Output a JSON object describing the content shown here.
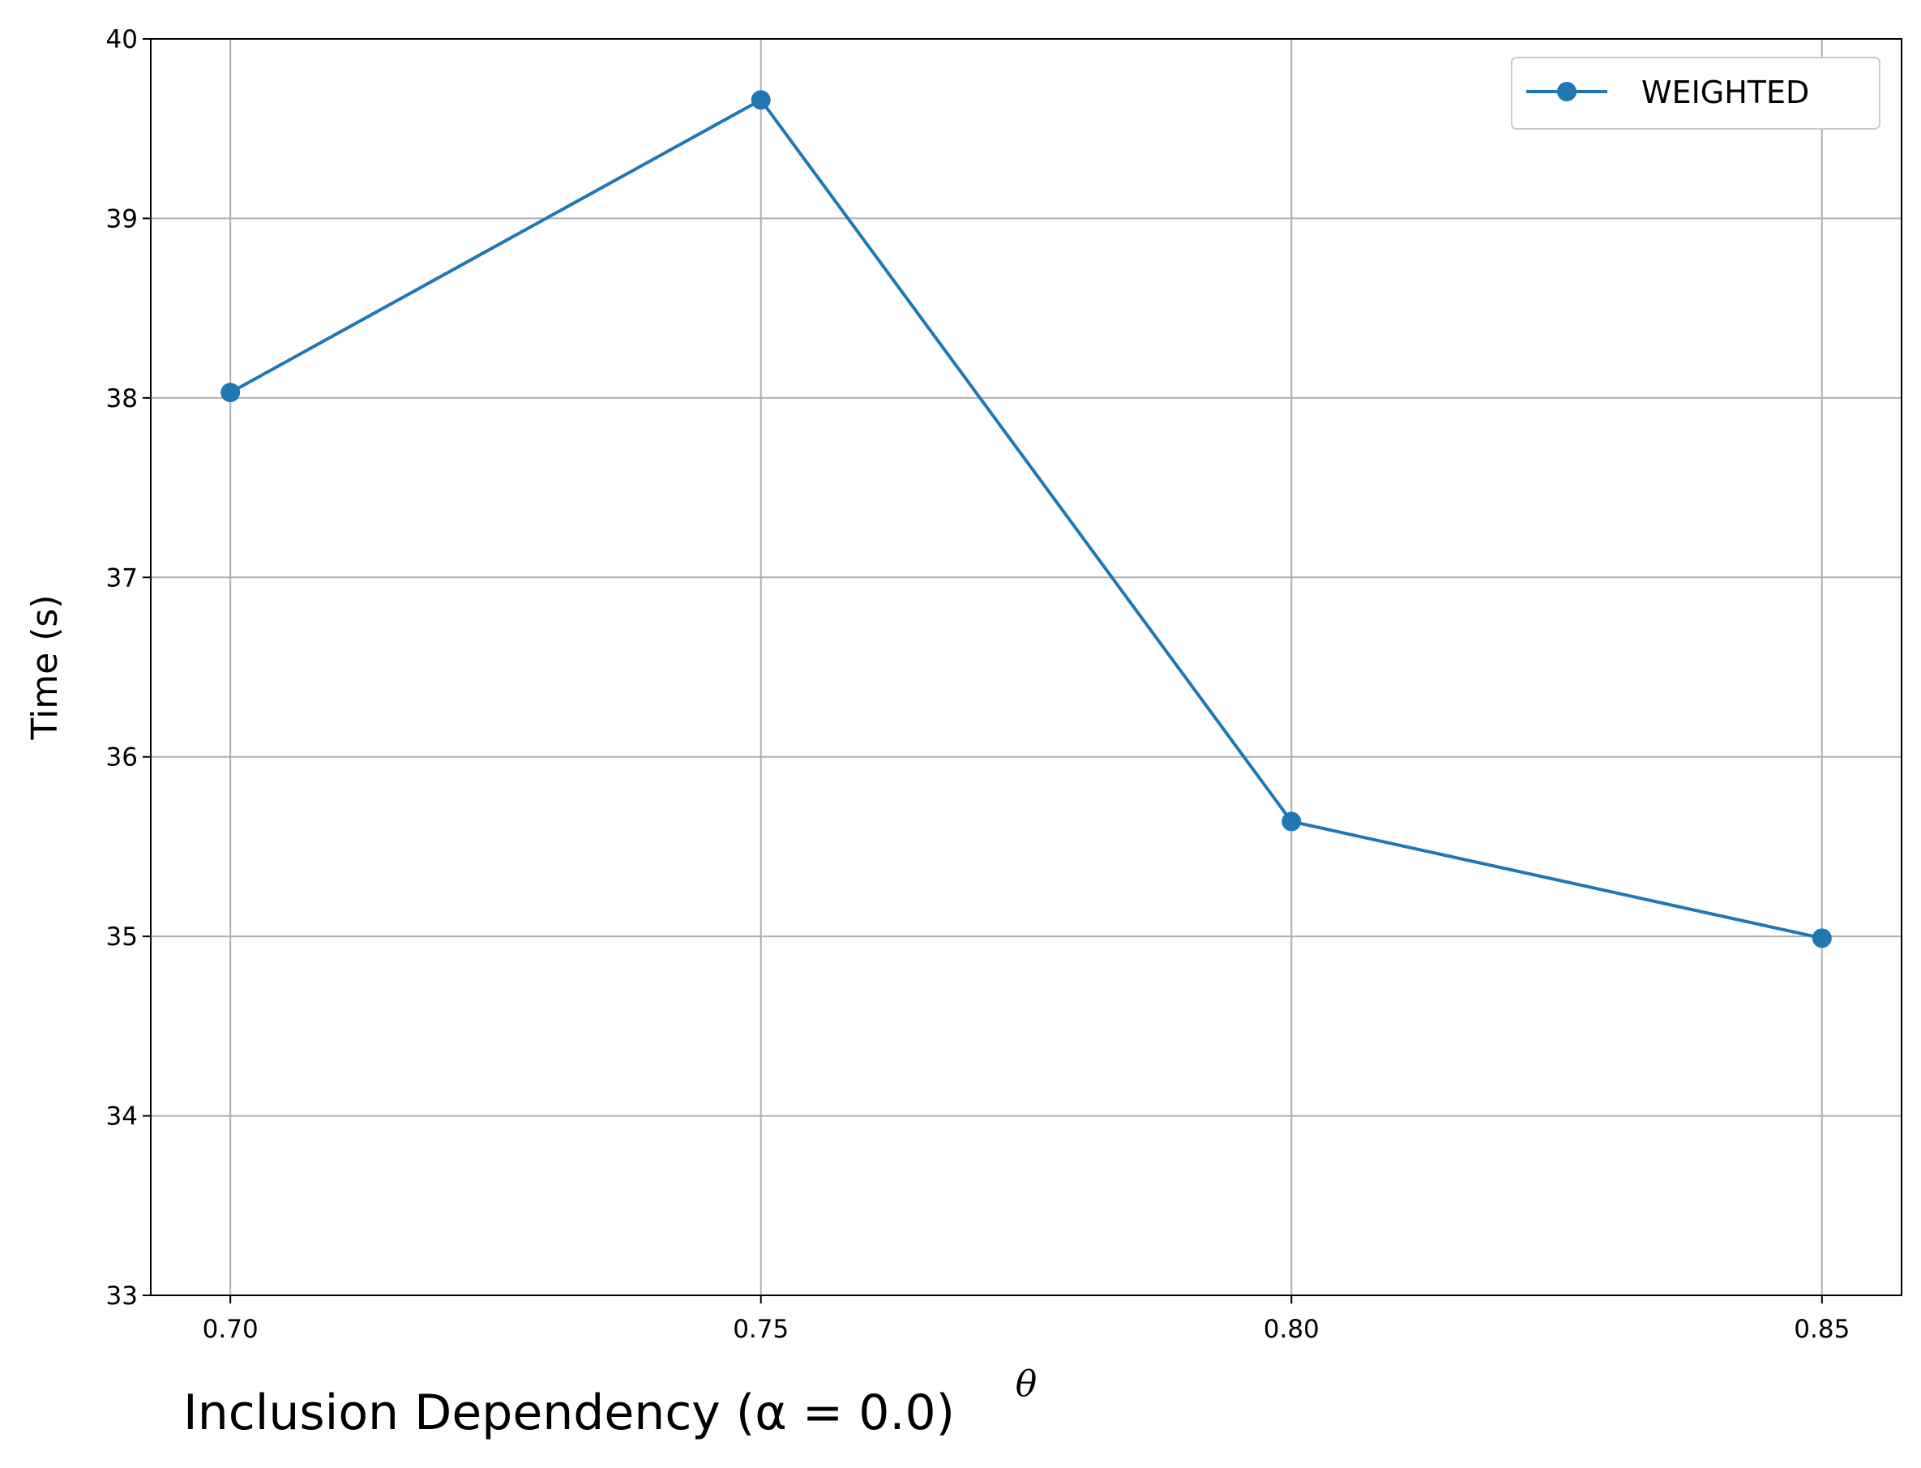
{
  "chart_data": {
    "type": "line",
    "x": [
      0.7,
      0.75,
      0.8,
      0.85
    ],
    "x_tick_labels": [
      "0.70",
      "0.75",
      "0.80",
      "0.85"
    ],
    "series": [
      {
        "name": "WEIGHTED",
        "values": [
          38.03,
          39.66,
          35.64,
          34.99
        ],
        "color": "#1f77b4",
        "marker": "circle"
      }
    ],
    "xlabel": "θ",
    "ylabel": "Time (s)",
    "xlim": [
      0.6925,
      0.8575
    ],
    "ylim": [
      33,
      40
    ],
    "y_ticks": [
      33,
      34,
      35,
      36,
      37,
      38,
      39,
      40
    ],
    "y_tick_labels": [
      "33",
      "34",
      "35",
      "36",
      "37",
      "38",
      "39",
      "40"
    ],
    "grid": true,
    "legend_position": "top-right"
  },
  "caption": "Inclusion Dependency (α = 0.0)"
}
